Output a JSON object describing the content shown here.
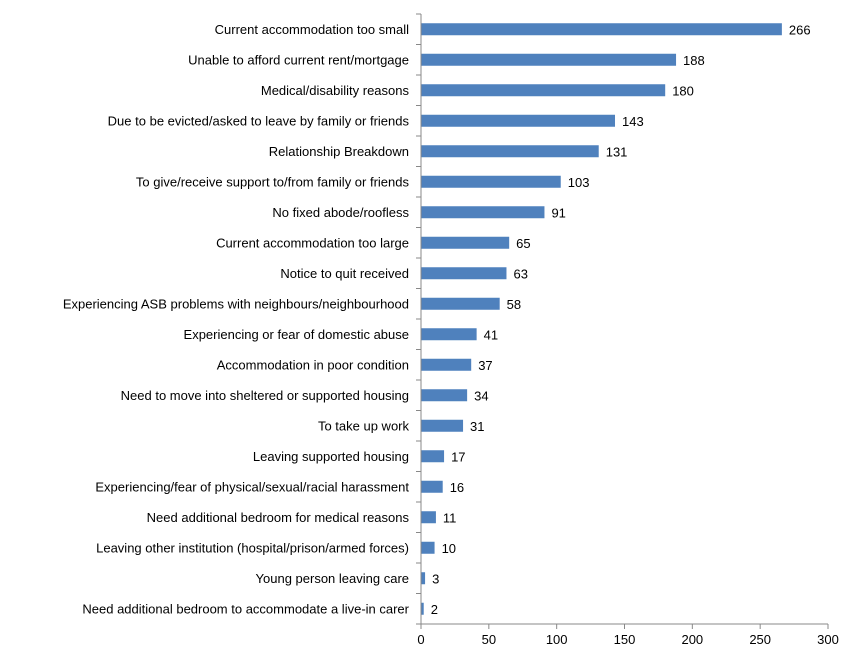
{
  "chart_data": {
    "type": "bar",
    "orientation": "horizontal",
    "title": "",
    "xlabel": "",
    "ylabel": "",
    "xlim": [
      0,
      300
    ],
    "x_ticks": [
      0,
      50,
      100,
      150,
      200,
      250,
      300
    ],
    "grid": false,
    "legend": "none",
    "bar_color": "#4F81BD",
    "categories": [
      "Current accommodation too small",
      "Unable to afford current rent/mortgage",
      "Medical/disability reasons",
      "Due to be evicted/asked to leave by family or friends",
      "Relationship Breakdown",
      "To give/receive support to/from family or friends",
      "No fixed abode/roofless",
      "Current accommodation too large",
      "Notice to quit received",
      "Experiencing ASB problems with neighbours/neighbourhood",
      "Experiencing or fear of domestic abuse",
      "Accommodation in poor condition",
      "Need to move into sheltered or supported housing",
      "To take up work",
      "Leaving supported housing",
      "Experiencing/fear of physical/sexual/racial harassment",
      "Need additional bedroom for medical reasons",
      "Leaving other institution (hospital/prison/armed forces)",
      "Young person leaving care",
      "Need additional bedroom to accommodate a live-in carer"
    ],
    "values": [
      266,
      188,
      180,
      143,
      131,
      103,
      91,
      65,
      63,
      58,
      41,
      37,
      34,
      31,
      17,
      16,
      11,
      10,
      3,
      2
    ]
  }
}
